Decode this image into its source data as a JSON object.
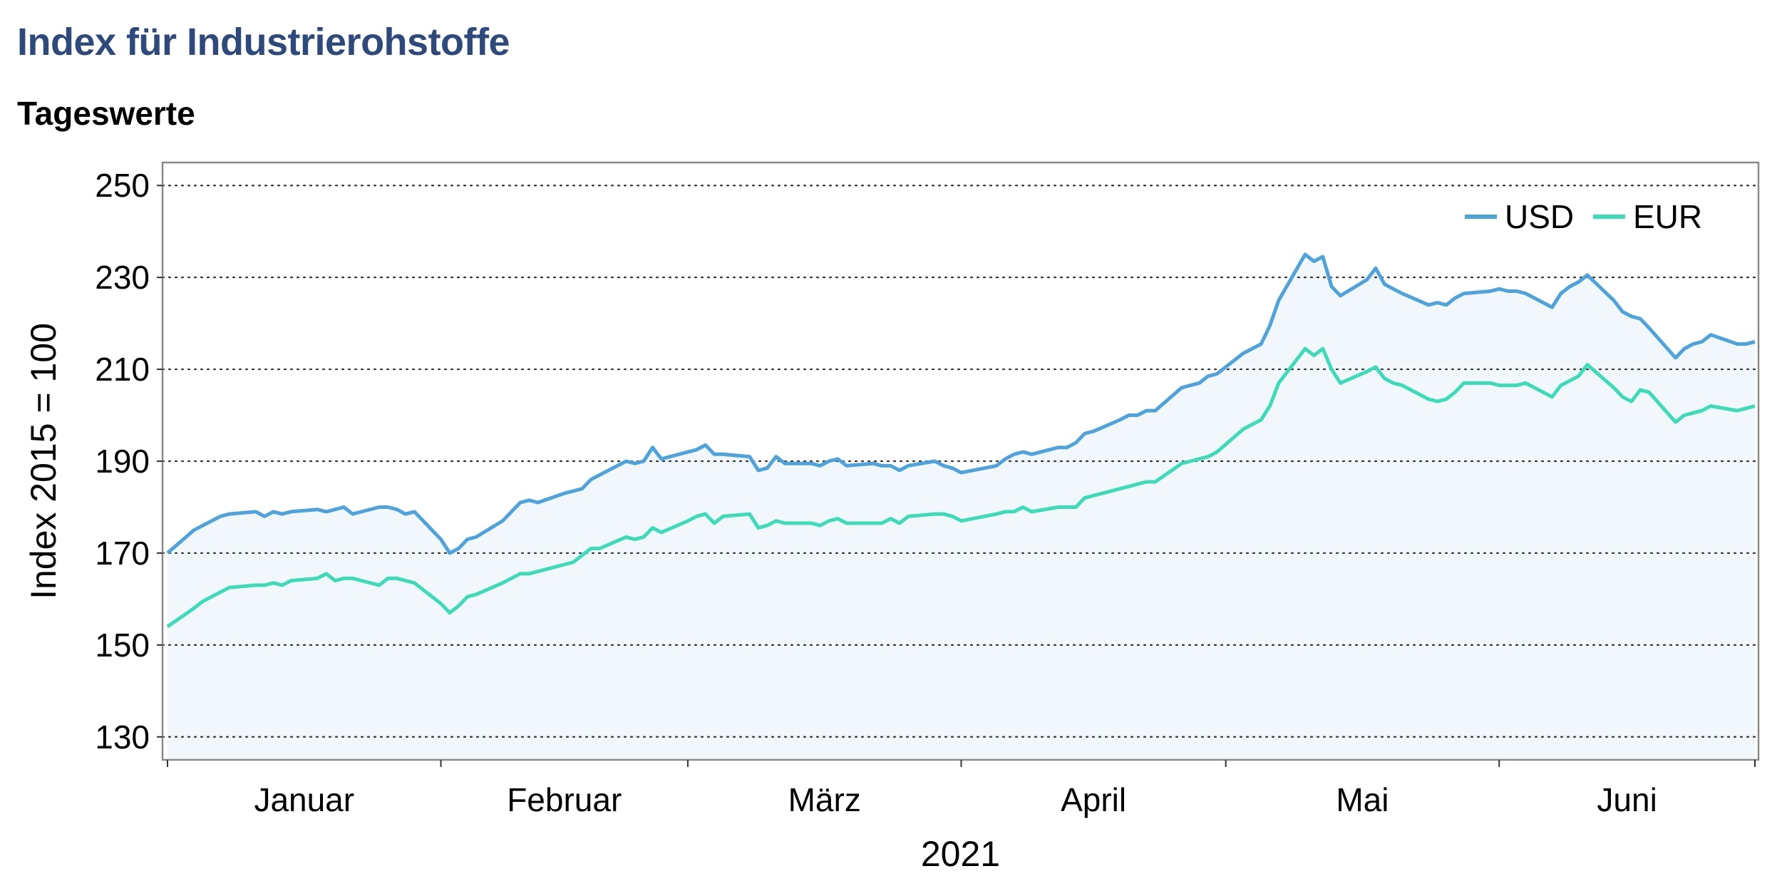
{
  "title": "Index für Industrierohstoffe",
  "subtitle": "Tageswerte",
  "colors": {
    "usd": "#4fa3dd",
    "eur": "#3ddbb9",
    "fill": "#eef6fa",
    "title": "#2e4a7d"
  },
  "chart_data": {
    "type": "line",
    "title": "Index für Industrierohstoffe",
    "subtitle": "Tageswerte",
    "xlabel": "2021",
    "ylabel": "Index 2015 = 100",
    "ylim": [
      125,
      255
    ],
    "yticks": [
      130,
      150,
      170,
      190,
      210,
      230,
      250
    ],
    "grid": "horizontal dotted",
    "legend_position": "top-right",
    "months": [
      "Januar",
      "Februar",
      "März",
      "April",
      "Mai",
      "Juni"
    ],
    "x_range": [
      "2021-01-01",
      "2021-06-30"
    ],
    "series": [
      {
        "name": "USD",
        "points": [
          [
            "2021-01-01",
            170
          ],
          [
            "2021-01-04",
            175
          ],
          [
            "2021-01-05",
            176
          ],
          [
            "2021-01-06",
            177
          ],
          [
            "2021-01-07",
            178
          ],
          [
            "2021-01-08",
            178.5
          ],
          [
            "2021-01-11",
            179
          ],
          [
            "2021-01-12",
            178
          ],
          [
            "2021-01-13",
            179
          ],
          [
            "2021-01-14",
            178.5
          ],
          [
            "2021-01-15",
            179
          ],
          [
            "2021-01-18",
            179.5
          ],
          [
            "2021-01-19",
            179
          ],
          [
            "2021-01-20",
            179.5
          ],
          [
            "2021-01-21",
            180
          ],
          [
            "2021-01-22",
            178.5
          ],
          [
            "2021-01-25",
            180
          ],
          [
            "2021-01-26",
            180
          ],
          [
            "2021-01-27",
            179.5
          ],
          [
            "2021-01-28",
            178.5
          ],
          [
            "2021-01-29",
            179
          ],
          [
            "2021-02-01",
            173
          ],
          [
            "2021-02-02",
            170
          ],
          [
            "2021-02-03",
            171
          ],
          [
            "2021-02-04",
            173
          ],
          [
            "2021-02-05",
            173.5
          ],
          [
            "2021-02-08",
            177
          ],
          [
            "2021-02-09",
            179
          ],
          [
            "2021-02-10",
            181
          ],
          [
            "2021-02-11",
            181.5
          ],
          [
            "2021-02-12",
            181
          ],
          [
            "2021-02-15",
            183
          ],
          [
            "2021-02-16",
            183.5
          ],
          [
            "2021-02-17",
            184
          ],
          [
            "2021-02-18",
            186
          ],
          [
            "2021-02-19",
            187
          ],
          [
            "2021-02-22",
            190
          ],
          [
            "2021-02-23",
            189.5
          ],
          [
            "2021-02-24",
            190
          ],
          [
            "2021-02-25",
            193
          ],
          [
            "2021-02-26",
            190.5
          ],
          [
            "2021-03-01",
            192
          ],
          [
            "2021-03-02",
            192.5
          ],
          [
            "2021-03-03",
            193.5
          ],
          [
            "2021-03-04",
            191.5
          ],
          [
            "2021-03-05",
            191.5
          ],
          [
            "2021-03-08",
            191
          ],
          [
            "2021-03-09",
            188
          ],
          [
            "2021-03-10",
            188.5
          ],
          [
            "2021-03-11",
            191
          ],
          [
            "2021-03-12",
            189.5
          ],
          [
            "2021-03-15",
            189.5
          ],
          [
            "2021-03-16",
            189
          ],
          [
            "2021-03-17",
            190
          ],
          [
            "2021-03-18",
            190.5
          ],
          [
            "2021-03-19",
            189
          ],
          [
            "2021-03-22",
            189.5
          ],
          [
            "2021-03-23",
            189
          ],
          [
            "2021-03-24",
            189
          ],
          [
            "2021-03-25",
            188
          ],
          [
            "2021-03-26",
            189
          ],
          [
            "2021-03-29",
            190
          ],
          [
            "2021-03-30",
            189
          ],
          [
            "2021-03-31",
            188.5
          ],
          [
            "2021-04-01",
            187.5
          ],
          [
            "2021-04-05",
            189
          ],
          [
            "2021-04-06",
            190.5
          ],
          [
            "2021-04-07",
            191.5
          ],
          [
            "2021-04-08",
            192
          ],
          [
            "2021-04-09",
            191.5
          ],
          [
            "2021-04-12",
            193
          ],
          [
            "2021-04-13",
            193
          ],
          [
            "2021-04-14",
            194
          ],
          [
            "2021-04-15",
            196
          ],
          [
            "2021-04-16",
            196.5
          ],
          [
            "2021-04-19",
            199
          ],
          [
            "2021-04-20",
            200
          ],
          [
            "2021-04-21",
            200
          ],
          [
            "2021-04-22",
            201
          ],
          [
            "2021-04-23",
            201
          ],
          [
            "2021-04-26",
            206
          ],
          [
            "2021-04-27",
            206.5
          ],
          [
            "2021-04-28",
            207
          ],
          [
            "2021-04-29",
            208.5
          ],
          [
            "2021-04-30",
            209
          ],
          [
            "2021-05-03",
            213.5
          ],
          [
            "2021-05-04",
            214.5
          ],
          [
            "2021-05-05",
            215.5
          ],
          [
            "2021-05-06",
            219.5
          ],
          [
            "2021-05-07",
            225
          ],
          [
            "2021-05-10",
            235
          ],
          [
            "2021-05-11",
            233.5
          ],
          [
            "2021-05-12",
            234.5
          ],
          [
            "2021-05-13",
            228
          ],
          [
            "2021-05-14",
            226
          ],
          [
            "2021-05-17",
            229.5
          ],
          [
            "2021-05-18",
            232
          ],
          [
            "2021-05-19",
            228.5
          ],
          [
            "2021-05-20",
            227.5
          ],
          [
            "2021-05-21",
            226.5
          ],
          [
            "2021-05-24",
            224
          ],
          [
            "2021-05-25",
            224.5
          ],
          [
            "2021-05-26",
            224
          ],
          [
            "2021-05-27",
            225.5
          ],
          [
            "2021-05-28",
            226.5
          ],
          [
            "2021-05-31",
            227
          ],
          [
            "2021-06-01",
            227.5
          ],
          [
            "2021-06-02",
            227
          ],
          [
            "2021-06-03",
            227
          ],
          [
            "2021-06-04",
            226.5
          ],
          [
            "2021-06-07",
            223.5
          ],
          [
            "2021-06-08",
            226.5
          ],
          [
            "2021-06-09",
            228
          ],
          [
            "2021-06-10",
            229
          ],
          [
            "2021-06-11",
            230.5
          ],
          [
            "2021-06-14",
            225
          ],
          [
            "2021-06-15",
            222.5
          ],
          [
            "2021-06-16",
            221.5
          ],
          [
            "2021-06-17",
            221
          ],
          [
            "2021-06-18",
            219
          ],
          [
            "2021-06-21",
            212.5
          ],
          [
            "2021-06-22",
            214.5
          ],
          [
            "2021-06-23",
            215.5
          ],
          [
            "2021-06-24",
            216
          ],
          [
            "2021-06-25",
            217.5
          ],
          [
            "2021-06-28",
            215.5
          ],
          [
            "2021-06-29",
            215.5
          ],
          [
            "2021-06-30",
            216
          ]
        ]
      },
      {
        "name": "EUR",
        "points": [
          [
            "2021-01-01",
            154
          ],
          [
            "2021-01-04",
            158
          ],
          [
            "2021-01-05",
            159.5
          ],
          [
            "2021-01-06",
            160.5
          ],
          [
            "2021-01-07",
            161.5
          ],
          [
            "2021-01-08",
            162.5
          ],
          [
            "2021-01-11",
            163
          ],
          [
            "2021-01-12",
            163
          ],
          [
            "2021-01-13",
            163.5
          ],
          [
            "2021-01-14",
            163
          ],
          [
            "2021-01-15",
            164
          ],
          [
            "2021-01-18",
            164.5
          ],
          [
            "2021-01-19",
            165.5
          ],
          [
            "2021-01-20",
            164
          ],
          [
            "2021-01-21",
            164.5
          ],
          [
            "2021-01-22",
            164.5
          ],
          [
            "2021-01-25",
            163
          ],
          [
            "2021-01-26",
            164.5
          ],
          [
            "2021-01-27",
            164.5
          ],
          [
            "2021-01-28",
            164
          ],
          [
            "2021-01-29",
            163.5
          ],
          [
            "2021-02-01",
            159
          ],
          [
            "2021-02-02",
            157
          ],
          [
            "2021-02-03",
            158.5
          ],
          [
            "2021-02-04",
            160.5
          ],
          [
            "2021-02-05",
            161
          ],
          [
            "2021-02-08",
            163.5
          ],
          [
            "2021-02-09",
            164.5
          ],
          [
            "2021-02-10",
            165.5
          ],
          [
            "2021-02-11",
            165.5
          ],
          [
            "2021-02-12",
            166
          ],
          [
            "2021-02-15",
            167.5
          ],
          [
            "2021-02-16",
            168
          ],
          [
            "2021-02-17",
            169.5
          ],
          [
            "2021-02-18",
            171
          ],
          [
            "2021-02-19",
            171
          ],
          [
            "2021-02-22",
            173.5
          ],
          [
            "2021-02-23",
            173
          ],
          [
            "2021-02-24",
            173.5
          ],
          [
            "2021-02-25",
            175.5
          ],
          [
            "2021-02-26",
            174.5
          ],
          [
            "2021-03-01",
            177
          ],
          [
            "2021-03-02",
            178
          ],
          [
            "2021-03-03",
            178.5
          ],
          [
            "2021-03-04",
            176.5
          ],
          [
            "2021-03-05",
            178
          ],
          [
            "2021-03-08",
            178.5
          ],
          [
            "2021-03-09",
            175.5
          ],
          [
            "2021-03-10",
            176
          ],
          [
            "2021-03-11",
            177
          ],
          [
            "2021-03-12",
            176.5
          ],
          [
            "2021-03-15",
            176.5
          ],
          [
            "2021-03-16",
            176
          ],
          [
            "2021-03-17",
            177
          ],
          [
            "2021-03-18",
            177.5
          ],
          [
            "2021-03-19",
            176.5
          ],
          [
            "2021-03-22",
            176.5
          ],
          [
            "2021-03-23",
            176.5
          ],
          [
            "2021-03-24",
            177.5
          ],
          [
            "2021-03-25",
            176.5
          ],
          [
            "2021-03-26",
            178
          ],
          [
            "2021-03-29",
            178.5
          ],
          [
            "2021-03-30",
            178.5
          ],
          [
            "2021-03-31",
            178
          ],
          [
            "2021-04-01",
            177
          ],
          [
            "2021-04-05",
            178.5
          ],
          [
            "2021-04-06",
            179
          ],
          [
            "2021-04-07",
            179
          ],
          [
            "2021-04-08",
            180
          ],
          [
            "2021-04-09",
            179
          ],
          [
            "2021-04-12",
            180
          ],
          [
            "2021-04-13",
            180
          ],
          [
            "2021-04-14",
            180
          ],
          [
            "2021-04-15",
            182
          ],
          [
            "2021-04-16",
            182.5
          ],
          [
            "2021-04-19",
            184
          ],
          [
            "2021-04-20",
            184.5
          ],
          [
            "2021-04-21",
            185
          ],
          [
            "2021-04-22",
            185.5
          ],
          [
            "2021-04-23",
            185.5
          ],
          [
            "2021-04-26",
            189.5
          ],
          [
            "2021-04-27",
            190
          ],
          [
            "2021-04-28",
            190.5
          ],
          [
            "2021-04-29",
            191
          ],
          [
            "2021-04-30",
            192
          ],
          [
            "2021-05-03",
            197
          ],
          [
            "2021-05-04",
            198
          ],
          [
            "2021-05-05",
            199
          ],
          [
            "2021-05-06",
            202
          ],
          [
            "2021-05-07",
            207
          ],
          [
            "2021-05-10",
            214.5
          ],
          [
            "2021-05-11",
            213
          ],
          [
            "2021-05-12",
            214.5
          ],
          [
            "2021-05-13",
            210
          ],
          [
            "2021-05-14",
            207
          ],
          [
            "2021-05-17",
            209.5
          ],
          [
            "2021-05-18",
            210.5
          ],
          [
            "2021-05-19",
            208
          ],
          [
            "2021-05-20",
            207
          ],
          [
            "2021-05-21",
            206.5
          ],
          [
            "2021-05-24",
            203.5
          ],
          [
            "2021-05-25",
            203
          ],
          [
            "2021-05-26",
            203.5
          ],
          [
            "2021-05-27",
            205
          ],
          [
            "2021-05-28",
            207
          ],
          [
            "2021-05-31",
            207
          ],
          [
            "2021-06-01",
            206.5
          ],
          [
            "2021-06-02",
            206.5
          ],
          [
            "2021-06-03",
            206.5
          ],
          [
            "2021-06-04",
            207
          ],
          [
            "2021-06-07",
            204
          ],
          [
            "2021-06-08",
            206.5
          ],
          [
            "2021-06-09",
            207.5
          ],
          [
            "2021-06-10",
            208.5
          ],
          [
            "2021-06-11",
            211
          ],
          [
            "2021-06-14",
            206
          ],
          [
            "2021-06-15",
            204
          ],
          [
            "2021-06-16",
            203
          ],
          [
            "2021-06-17",
            205.5
          ],
          [
            "2021-06-18",
            205
          ],
          [
            "2021-06-21",
            198.5
          ],
          [
            "2021-06-22",
            200
          ],
          [
            "2021-06-23",
            200.5
          ],
          [
            "2021-06-24",
            201
          ],
          [
            "2021-06-25",
            202
          ],
          [
            "2021-06-28",
            201
          ],
          [
            "2021-06-29",
            201.5
          ],
          [
            "2021-06-30",
            202
          ]
        ]
      }
    ]
  }
}
